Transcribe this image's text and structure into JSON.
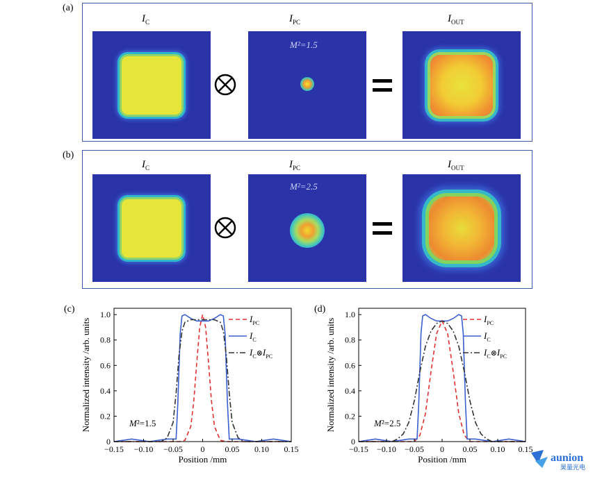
{
  "panel_a": {
    "tag": "(a)",
    "labels": [
      {
        "main": "I",
        "sub": "C"
      },
      {
        "main": "I",
        "sub": "PC"
      },
      {
        "main": "I",
        "sub": "OUT"
      }
    ],
    "m2_label": "M²=1.5"
  },
  "panel_b": {
    "tag": "(b)",
    "labels": [
      {
        "main": "I",
        "sub": "C"
      },
      {
        "main": "I",
        "sub": "PC"
      },
      {
        "main": "I",
        "sub": "OUT"
      }
    ],
    "m2_label": "M²=2.5"
  },
  "operators": {
    "convolve": "⊗",
    "equals": "="
  },
  "chart_data": [
    {
      "panel_tag": "(c)",
      "type": "line",
      "xlabel": "Position /mm",
      "ylabel": "Normalized intensity /arb. units",
      "xlim": [
        -0.15,
        0.15
      ],
      "ylim": [
        0,
        1.05
      ],
      "xticks": [
        "−0.15",
        "−0.10",
        "−0.05",
        "0",
        "0.05",
        "0.10",
        "0.15"
      ],
      "yticks": [
        "0",
        "0.2",
        "0.4",
        "0.6",
        "0.8",
        "1.0"
      ],
      "annotation": "M²=1.5",
      "legend": [
        "I_PC",
        "I_C",
        "I_C⊗I_PC"
      ],
      "legend_position": "top-right",
      "series": [
        {
          "name": "I_PC",
          "color": "#e03030",
          "style": "dashed",
          "x": [
            -0.15,
            -0.04,
            -0.03,
            -0.02,
            -0.015,
            -0.01,
            -0.005,
            0,
            0.005,
            0.01,
            0.015,
            0.02,
            0.03,
            0.04,
            0.15
          ],
          "y": [
            0,
            0,
            0.01,
            0.12,
            0.32,
            0.62,
            0.9,
            1.0,
            0.9,
            0.62,
            0.32,
            0.12,
            0.01,
            0,
            0
          ]
        },
        {
          "name": "I_C",
          "color": "#3a5fd0",
          "style": "solid",
          "x": [
            -0.15,
            -0.12,
            -0.09,
            -0.06,
            -0.045,
            -0.042,
            -0.038,
            -0.035,
            -0.03,
            -0.02,
            -0.01,
            0,
            0.01,
            0.02,
            0.03,
            0.035,
            0.038,
            0.042,
            0.045,
            0.06,
            0.09,
            0.12,
            0.15
          ],
          "y": [
            0,
            0.02,
            0,
            0.02,
            0.02,
            0.3,
            0.85,
            0.99,
            1.0,
            0.97,
            0.95,
            0.95,
            0.95,
            0.97,
            1.0,
            0.99,
            0.85,
            0.3,
            0.02,
            0.02,
            0,
            0.02,
            0
          ],
          "note": "approximate"
        },
        {
          "name": "I_C⊗I_PC",
          "color": "#333333",
          "style": "dashdot",
          "x": [
            -0.15,
            -0.07,
            -0.06,
            -0.05,
            -0.045,
            -0.04,
            -0.035,
            -0.03,
            -0.02,
            0,
            0.02,
            0.03,
            0.035,
            0.04,
            0.045,
            0.05,
            0.06,
            0.07,
            0.15
          ],
          "y": [
            0,
            0,
            0.03,
            0.15,
            0.38,
            0.68,
            0.87,
            0.94,
            0.96,
            0.96,
            0.96,
            0.94,
            0.87,
            0.68,
            0.38,
            0.15,
            0.03,
            0,
            0
          ]
        }
      ]
    },
    {
      "panel_tag": "(d)",
      "type": "line",
      "xlabel": "Position /mm",
      "ylabel": "Normalized intensity /arb. units",
      "xlim": [
        -0.15,
        0.15
      ],
      "ylim": [
        0,
        1.05
      ],
      "xticks": [
        "−0.15",
        "−0.10",
        "−0.05",
        "0",
        "0.05",
        "0.10",
        "0.15"
      ],
      "yticks": [
        "0",
        "0.2",
        "0.4",
        "0.6",
        "0.8",
        "1.0"
      ],
      "annotation": "M²=2.5",
      "legend": [
        "I_PC",
        "I_C",
        "I_C⊗I_PC"
      ],
      "legend_position": "top-right",
      "series": [
        {
          "name": "I_PC",
          "color": "#e03030",
          "style": "dashed",
          "x": [
            -0.15,
            -0.05,
            -0.04,
            -0.03,
            -0.02,
            -0.01,
            0,
            0.01,
            0.02,
            0.03,
            0.04,
            0.05,
            0.15
          ],
          "y": [
            0,
            0,
            0.05,
            0.22,
            0.55,
            0.85,
            0.95,
            0.85,
            0.55,
            0.22,
            0.05,
            0,
            0
          ]
        },
        {
          "name": "I_C",
          "color": "#3a5fd0",
          "style": "solid",
          "x": [
            -0.15,
            -0.12,
            -0.09,
            -0.06,
            -0.045,
            -0.042,
            -0.038,
            -0.035,
            -0.03,
            -0.02,
            -0.01,
            0,
            0.01,
            0.02,
            0.03,
            0.035,
            0.038,
            0.042,
            0.045,
            0.06,
            0.09,
            0.12,
            0.15
          ],
          "y": [
            0,
            0.02,
            0,
            0.02,
            0.02,
            0.3,
            0.85,
            0.99,
            1.0,
            0.97,
            0.95,
            0.95,
            0.95,
            0.97,
            1.0,
            0.99,
            0.85,
            0.3,
            0.02,
            0.02,
            0,
            0.02,
            0
          ]
        },
        {
          "name": "I_C⊗I_PC",
          "color": "#333333",
          "style": "dashdot",
          "x": [
            -0.15,
            -0.09,
            -0.08,
            -0.07,
            -0.06,
            -0.05,
            -0.04,
            -0.03,
            -0.02,
            -0.01,
            0,
            0.01,
            0.02,
            0.03,
            0.04,
            0.05,
            0.06,
            0.07,
            0.08,
            0.09,
            0.15
          ],
          "y": [
            0,
            0,
            0.02,
            0.06,
            0.15,
            0.32,
            0.55,
            0.75,
            0.87,
            0.93,
            0.95,
            0.93,
            0.87,
            0.75,
            0.55,
            0.32,
            0.15,
            0.06,
            0.02,
            0,
            0
          ]
        }
      ]
    }
  ],
  "watermark": {
    "brand": "aunion",
    "sub": "昊量光电"
  }
}
